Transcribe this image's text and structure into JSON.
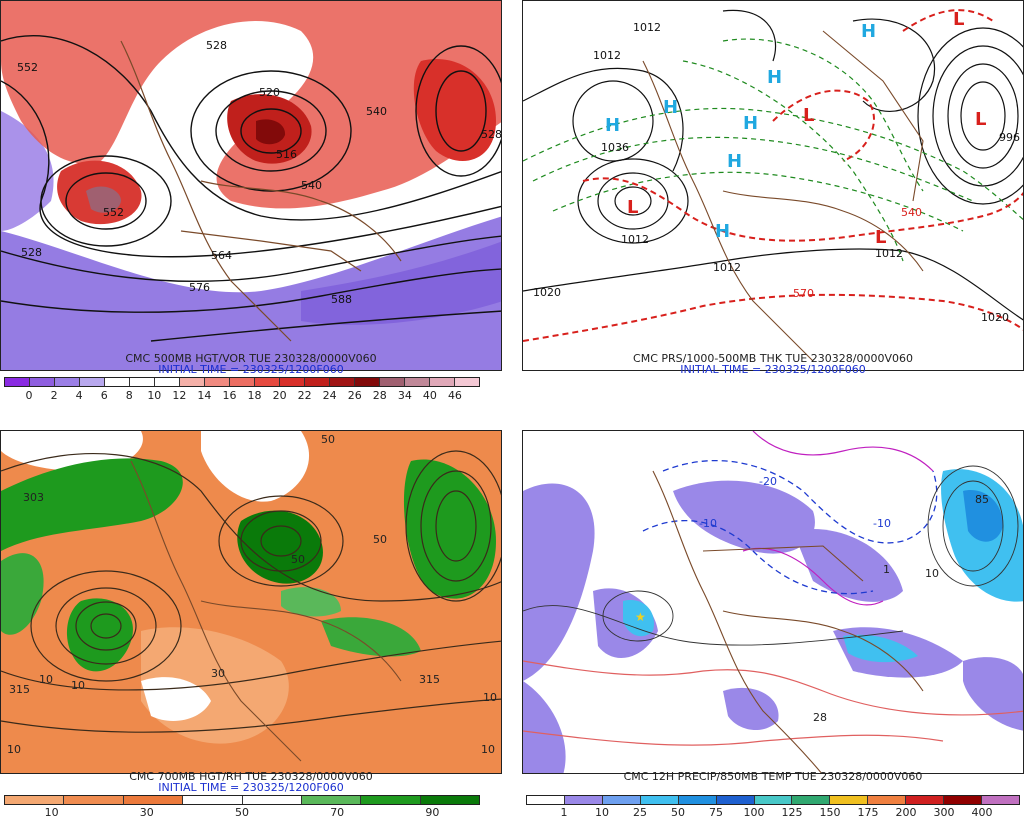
{
  "panels": [
    {
      "title": "CMC 500MB HGT/VOR TUE 230328/0000V060",
      "initial_time": "INITIAL TIME = 230325/1200F060",
      "colorbar": {
        "colors": [
          "#8a2be2",
          "#8f5fe0",
          "#9b7fe6",
          "#b8a8ee",
          "#ffffff",
          "#ffffff",
          "#ffffff",
          "#f4b0a8",
          "#f08a80",
          "#ec6e62",
          "#e64a40",
          "#d8302a",
          "#c0201c",
          "#a01414",
          "#820a0a",
          "#a06070",
          "#c08898",
          "#e0a8b8",
          "#f4c8d4"
        ],
        "labels": [
          "0",
          "2",
          "4",
          "6",
          "8",
          "10",
          "12",
          "14",
          "16",
          "18",
          "20",
          "22",
          "24",
          "26",
          "28",
          "34",
          "40",
          "46"
        ]
      },
      "contour_labels": [
        "552",
        "520",
        "540",
        "528",
        "516",
        "540",
        "528",
        "564",
        "576",
        "588",
        "552",
        "528"
      ]
    },
    {
      "title": "CMC PRS/1000-500MB THK TUE 230328/0000V060",
      "initial_time": "INITIAL TIME = 230325/1200F060",
      "centers": [
        "H",
        "H",
        "H",
        "H",
        "H",
        "H",
        "H",
        "L",
        "L",
        "L",
        "L",
        "L"
      ],
      "contour_labels": [
        "1012",
        "1036",
        "1012",
        "1020",
        "1012",
        "1020",
        "1012",
        "540",
        "570",
        "1012",
        "996"
      ]
    },
    {
      "title": "CMC 700MB HGT/RH TUE 230328/0000V060",
      "initial_time": "INITIAL TIME = 230325/1200F060",
      "colorbar": {
        "colors": [
          "#f4a872",
          "#f08c50",
          "#ec7a3c",
          "#ffffff",
          "#ffffff",
          "#5ab85a",
          "#1e9a1e",
          "#0a7a0a"
        ],
        "labels": [
          "10",
          "30",
          "50",
          "70",
          "90"
        ]
      },
      "contour_labels": [
        "303",
        "315",
        "10",
        "10",
        "10",
        "50",
        "50",
        "10",
        "315",
        "10",
        "50",
        "30"
      ]
    },
    {
      "title": "CMC 12H PRECIP/850MB TEMP TUE 230328/0000V060",
      "colorbar": {
        "colors": [
          "#ffffff",
          "#9a88e8",
          "#6ea0f0",
          "#40c0f0",
          "#2090e0",
          "#1e60d0",
          "#48c8c8",
          "#30a870",
          "#f0c020",
          "#f08040",
          "#d02020",
          "#900000",
          "#c070c0"
        ],
        "labels": [
          "1",
          "10",
          "25",
          "50",
          "75",
          "100",
          "125",
          "150",
          "175",
          "200",
          "300",
          "400"
        ]
      },
      "contour_labels": [
        "-10",
        "-10",
        "-20",
        "28",
        "85",
        "10",
        "1"
      ]
    }
  ]
}
